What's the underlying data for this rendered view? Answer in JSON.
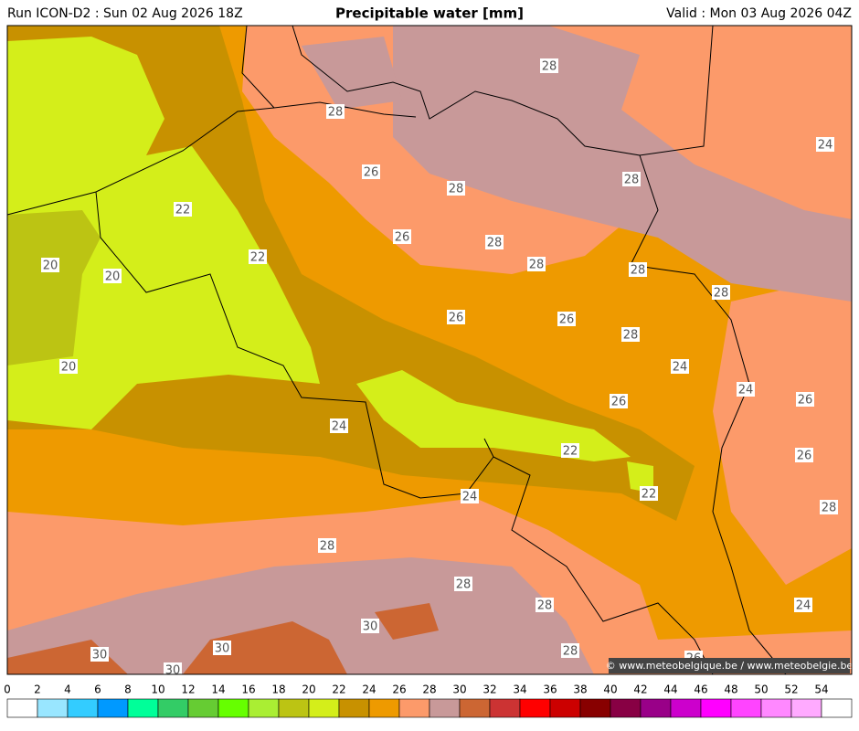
{
  "header": {
    "run": "Run ICON-D2 : Sun 02 Aug 2026 18Z",
    "title": "Precipitable water [mm]",
    "valid": "Valid : Mon 03 Aug 2026 04Z"
  },
  "map": {
    "contour_labels": [
      "28",
      "28",
      "24",
      "26",
      "28",
      "28",
      "22",
      "26",
      "28",
      "22",
      "28",
      "20",
      "20",
      "28",
      "28",
      "26",
      "26",
      "28",
      "20",
      "24",
      "24",
      "26",
      "26",
      "24",
      "22",
      "26",
      "22",
      "24",
      "28",
      "28",
      "28",
      "28",
      "24",
      "30",
      "30",
      "30",
      "28",
      "30",
      "26"
    ],
    "credit": "© www.meteobelgique.be / www.meteobelgie.be"
  },
  "colorbar": {
    "ticks": [
      0,
      2,
      4,
      6,
      8,
      10,
      12,
      14,
      16,
      18,
      20,
      22,
      24,
      26,
      28,
      30,
      32,
      34,
      36,
      38,
      40,
      42,
      44,
      46,
      48,
      50,
      52,
      54
    ],
    "colors": [
      "#ffffff",
      "#99e6ff",
      "#33ccff",
      "#0099ff",
      "#00ff99",
      "#33cc66",
      "#66cc33",
      "#66ff00",
      "#aaee33",
      "#bcc413",
      "#d4ee1a",
      "#c89100",
      "#ee9a00",
      "#fc9a6a",
      "#c89999",
      "#cc6633",
      "#cc3333",
      "#ff0000",
      "#cc0000",
      "#880000",
      "#880044",
      "#990088",
      "#cc00cc",
      "#ff00ff",
      "#ff44ff",
      "#ff88ff",
      "#ffaaff",
      "#ffffff"
    ]
  }
}
